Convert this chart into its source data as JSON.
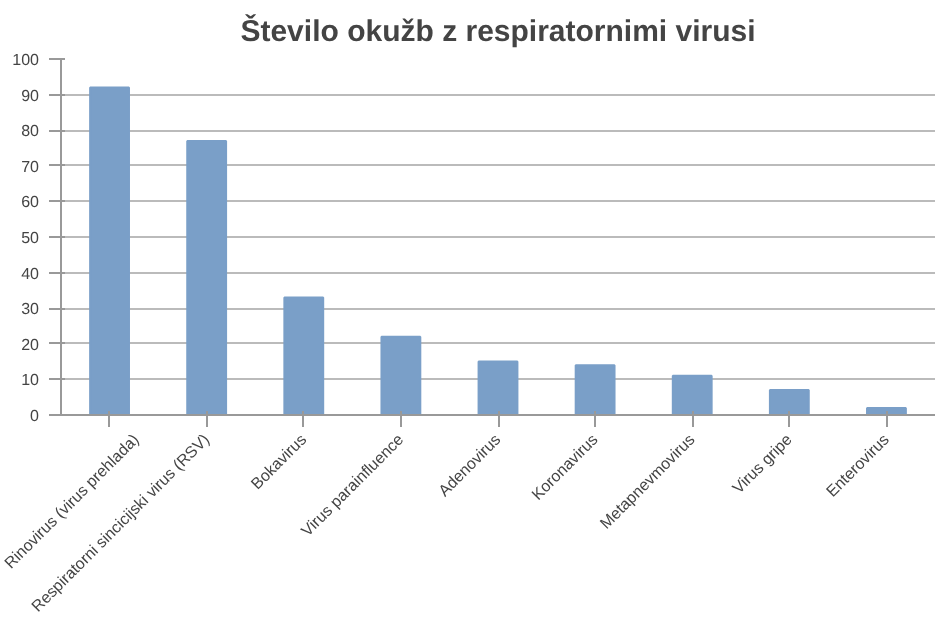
{
  "chart_data": {
    "type": "bar",
    "title": "Število okužb z respiratornimi virusi",
    "categories": [
      "Rinovirus (virus prehlada)",
      "Respiratorni sincicijski virus (RSV)",
      "Bokavirus",
      "Virus parainfluence",
      "Adenovirus",
      "Koronavirus",
      "Metapnevmovirus",
      "Virus gripe",
      "Enterovirus"
    ],
    "values": [
      92,
      77,
      33,
      22,
      15,
      14,
      11,
      7,
      2
    ],
    "color": "#7a9fc8",
    "ylim": [
      0,
      100
    ],
    "yticks": [
      0,
      10,
      20,
      30,
      40,
      50,
      60,
      70,
      80,
      90,
      100
    ],
    "grid": "y"
  }
}
